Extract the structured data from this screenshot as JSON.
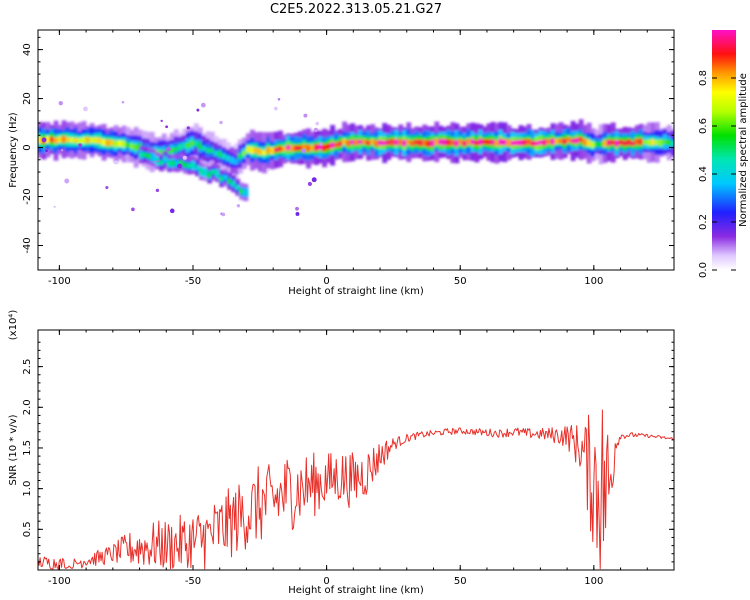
{
  "title": "C2E5.2022.313.05.21.G27",
  "colorbar": {
    "label": "Normalized spectral amplitude",
    "ticks": [
      "0.0",
      "0.2",
      "0.4",
      "0.6",
      "0.8"
    ],
    "tick_values": [
      0.0,
      0.2,
      0.4,
      0.6,
      0.8
    ],
    "range": [
      0,
      1
    ]
  },
  "colors": {
    "snr_line": "#e8302a",
    "axis": "#000000",
    "background": "#ffffff"
  },
  "chart_data": [
    {
      "type": "heatmap",
      "xlabel": "Height of straight line (km)",
      "ylabel": "Frequency (Hz)",
      "xlim": [
        -108,
        130
      ],
      "ylim": [
        -50,
        48
      ],
      "xticks": [
        "-100",
        "-50",
        "0",
        "50",
        "100"
      ],
      "yticks": [
        "40",
        "20",
        "0",
        "-20",
        "-40"
      ],
      "xtick_values": [
        -100,
        -50,
        0,
        50,
        100
      ],
      "ytick_values": [
        40,
        20,
        0,
        -20,
        -40
      ],
      "colormap": "rainbow (white-purple-blue-cyan-green-yellow-orange-red-magenta)",
      "ridge": {
        "description": "dominant spectral ridge (frequency of maximum amplitude vs height)",
        "x": [
          -108,
          -100,
          -90,
          -80,
          -75,
          -70,
          -65,
          -60,
          -55,
          -50,
          -45,
          -40,
          -35,
          -30,
          -25,
          -20,
          -15,
          -10,
          -5,
          0,
          5,
          10,
          20,
          30,
          40,
          50,
          60,
          70,
          80,
          90,
          95,
          100,
          102,
          105,
          110,
          120,
          130
        ],
        "freq": [
          3,
          3,
          3,
          2,
          1,
          0,
          -2,
          -2,
          0,
          2,
          -1,
          -3,
          -6,
          -1,
          -2,
          -1,
          0,
          0,
          0,
          0,
          2,
          2,
          2,
          2,
          2,
          2,
          2,
          2,
          2,
          3,
          3,
          1,
          1,
          2,
          2,
          2,
          2
        ],
        "amplitude": [
          0.8,
          0.85,
          0.75,
          0.7,
          0.6,
          0.6,
          0.55,
          0.6,
          0.5,
          0.55,
          0.45,
          0.45,
          0.35,
          0.7,
          0.8,
          0.85,
          0.9,
          0.95,
          0.9,
          0.9,
          0.85,
          0.9,
          0.95,
          0.95,
          0.95,
          0.95,
          0.95,
          0.95,
          0.95,
          0.9,
          0.9,
          0.6,
          0.5,
          0.9,
          0.95,
          0.7,
          0.5
        ]
      },
      "secondary_branch": {
        "description": "weaker lower branch diverging between -70 and -30 km",
        "x": [
          -70,
          -60,
          -50,
          -45,
          -40,
          -35,
          -30
        ],
        "freq": [
          -3,
          -6,
          -8,
          -10,
          -12,
          -14,
          -20
        ]
      }
    },
    {
      "type": "line",
      "xlabel": "Height of straight line (km)",
      "ylabel": "SNR (10 * v/v)",
      "y_multiplier": "(x10⁴)",
      "xlim": [
        -108,
        130
      ],
      "ylim": [
        0,
        2.95
      ],
      "xticks": [
        "-100",
        "-50",
        "0",
        "50",
        "100"
      ],
      "yticks": [
        "0.5",
        "1.0",
        "1.5",
        "2.0",
        "2.5"
      ],
      "xtick_values": [
        -100,
        -50,
        0,
        50,
        100
      ],
      "ytick_values": [
        0.5,
        1.0,
        1.5,
        2.0,
        2.5
      ],
      "series": [
        {
          "x": [
            -108,
            -100,
            -95,
            -90,
            -85,
            -80,
            -75,
            -70,
            -65,
            -60,
            -55,
            -50,
            -45,
            -40,
            -35,
            -30,
            -25,
            -20,
            -15,
            -10,
            -5,
            0,
            5,
            10,
            15,
            20,
            25,
            30,
            35,
            40,
            45,
            50,
            55,
            60,
            65,
            70,
            75,
            80,
            85,
            90,
            95,
            100,
            102,
            104,
            106,
            108,
            110,
            115,
            120,
            125,
            130
          ],
          "y": [
            0.1,
            0.08,
            0.07,
            0.12,
            0.15,
            0.2,
            0.25,
            0.28,
            0.3,
            0.3,
            0.32,
            0.35,
            0.4,
            0.5,
            0.6,
            0.7,
            0.8,
            0.85,
            0.95,
            1.0,
            1.05,
            1.1,
            1.15,
            1.1,
            1.2,
            1.4,
            1.55,
            1.62,
            1.66,
            1.68,
            1.7,
            1.71,
            1.7,
            1.69,
            1.68,
            1.7,
            1.68,
            1.67,
            1.66,
            1.65,
            1.5,
            1.1,
            1.0,
            1.0,
            1.0,
            1.55,
            1.65,
            1.66,
            1.65,
            1.63,
            1.61
          ],
          "noise_amplitude": [
            0.08,
            0.08,
            0.08,
            0.08,
            0.1,
            0.12,
            0.2,
            0.25,
            0.3,
            0.32,
            0.35,
            0.38,
            0.4,
            0.42,
            0.45,
            0.45,
            0.5,
            0.45,
            0.5,
            0.45,
            0.4,
            0.35,
            0.35,
            0.35,
            0.3,
            0.2,
            0.08,
            0.05,
            0.04,
            0.04,
            0.04,
            0.04,
            0.04,
            0.05,
            0.05,
            0.06,
            0.06,
            0.07,
            0.1,
            0.15,
            0.3,
            0.9,
            1.3,
            1.2,
            0.8,
            0.15,
            0.04,
            0.03,
            0.02,
            0.02,
            0.02
          ]
        }
      ]
    }
  ]
}
